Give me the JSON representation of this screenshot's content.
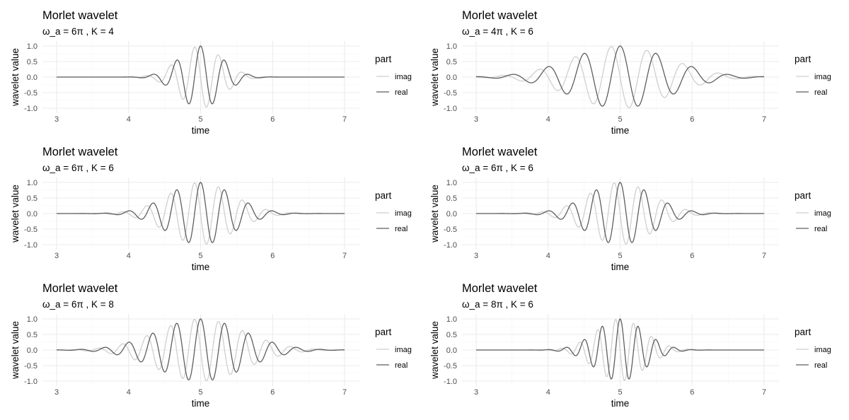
{
  "colors": {
    "real": "#5e5e5e",
    "imag": "#cfcfcf",
    "grid_major": "#ebebeb",
    "grid_minor": "#f5f5f5"
  },
  "chart_data": [
    {
      "type": "line",
      "title": "Morlet wavelet",
      "subtitle": "ω_a = 6π , K = 4",
      "omega_a_over_pi": 6,
      "K": 4,
      "center": 5,
      "xlabel": "time",
      "ylabel": "wavelet value",
      "xlim": [
        3,
        7
      ],
      "ylim": [
        -1,
        1
      ],
      "xticks": [
        "3",
        "4",
        "5",
        "6",
        "7"
      ],
      "yticks": [
        "-1.0",
        "-0.5",
        "0.0",
        "0.5",
        "1.0"
      ],
      "grid": true,
      "legend": {
        "title": "part",
        "placement": "right",
        "entries": [
          "imag",
          "real"
        ]
      },
      "series": [
        {
          "name": "imag"
        },
        {
          "name": "real"
        }
      ]
    },
    {
      "type": "line",
      "title": "Morlet wavelet",
      "subtitle": "ω_a = 4π , K = 6",
      "omega_a_over_pi": 4,
      "K": 6,
      "center": 5,
      "xlabel": "time",
      "ylabel": "wavelet value",
      "xlim": [
        3,
        7
      ],
      "ylim": [
        -1,
        1
      ],
      "xticks": [
        "3",
        "4",
        "5",
        "6",
        "7"
      ],
      "yticks": [
        "-1.0",
        "-0.5",
        "0.0",
        "0.5",
        "1.0"
      ],
      "grid": true,
      "legend": {
        "title": "part",
        "placement": "right",
        "entries": [
          "imag",
          "real"
        ]
      },
      "series": [
        {
          "name": "imag"
        },
        {
          "name": "real"
        }
      ]
    },
    {
      "type": "line",
      "title": "Morlet wavelet",
      "subtitle": "ω_a = 6π , K = 6",
      "omega_a_over_pi": 6,
      "K": 6,
      "center": 5,
      "xlabel": "time",
      "ylabel": "wavelet value",
      "xlim": [
        3,
        7
      ],
      "ylim": [
        -1,
        1
      ],
      "xticks": [
        "3",
        "4",
        "5",
        "6",
        "7"
      ],
      "yticks": [
        "-1.0",
        "-0.5",
        "0.0",
        "0.5",
        "1.0"
      ],
      "grid": true,
      "legend": {
        "title": "part",
        "placement": "right",
        "entries": [
          "imag",
          "real"
        ]
      },
      "series": [
        {
          "name": "imag"
        },
        {
          "name": "real"
        }
      ]
    },
    {
      "type": "line",
      "title": "Morlet wavelet",
      "subtitle": "ω_a = 6π , K = 6",
      "omega_a_over_pi": 6,
      "K": 6,
      "center": 5,
      "xlabel": "time",
      "ylabel": "wavelet value",
      "xlim": [
        3,
        7
      ],
      "ylim": [
        -1,
        1
      ],
      "xticks": [
        "3",
        "4",
        "5",
        "6",
        "7"
      ],
      "yticks": [
        "-1.0",
        "-0.5",
        "0.0",
        "0.5",
        "1.0"
      ],
      "grid": true,
      "legend": {
        "title": "part",
        "placement": "right",
        "entries": [
          "imag",
          "real"
        ]
      },
      "series": [
        {
          "name": "imag"
        },
        {
          "name": "real"
        }
      ]
    },
    {
      "type": "line",
      "title": "Morlet wavelet",
      "subtitle": "ω_a = 6π , K = 8",
      "omega_a_over_pi": 6,
      "K": 8,
      "center": 5,
      "xlabel": "time",
      "ylabel": "wavelet value",
      "xlim": [
        3,
        7
      ],
      "ylim": [
        -1,
        1
      ],
      "xticks": [
        "3",
        "4",
        "5",
        "6",
        "7"
      ],
      "yticks": [
        "-1.0",
        "-0.5",
        "0.0",
        "0.5",
        "1.0"
      ],
      "grid": true,
      "legend": {
        "title": "part",
        "placement": "right",
        "entries": [
          "imag",
          "real"
        ]
      },
      "series": [
        {
          "name": "imag"
        },
        {
          "name": "real"
        }
      ]
    },
    {
      "type": "line",
      "title": "Morlet wavelet",
      "subtitle": "ω_a = 8π , K = 6",
      "omega_a_over_pi": 8,
      "K": 6,
      "center": 5,
      "xlabel": "time",
      "ylabel": "wavelet value",
      "xlim": [
        3,
        7
      ],
      "ylim": [
        -1,
        1
      ],
      "xticks": [
        "3",
        "4",
        "5",
        "6",
        "7"
      ],
      "yticks": [
        "-1.0",
        "-0.5",
        "0.0",
        "0.5",
        "1.0"
      ],
      "grid": true,
      "legend": {
        "title": "part",
        "placement": "right",
        "entries": [
          "imag",
          "real"
        ]
      },
      "series": [
        {
          "name": "imag"
        },
        {
          "name": "real"
        }
      ]
    }
  ]
}
